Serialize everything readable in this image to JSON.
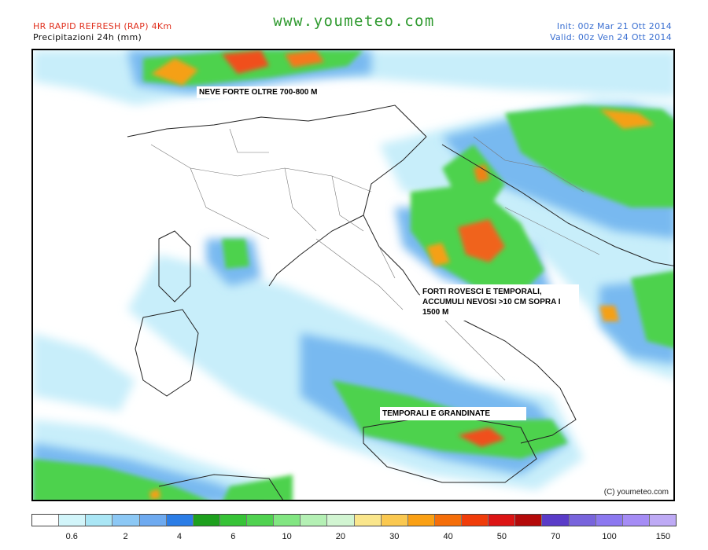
{
  "header": {
    "model": "HR RAPID REFRESH (RAP) 4Km",
    "product": "Precipitazioni 24h (mm)",
    "site": "www.youmeteo.com",
    "init": "Init: 00z Mar  21 Ott 2014",
    "valid": "Valid: 00z Ven  24 Ott 2014"
  },
  "annotations": {
    "snow": "NEVE FORTE OLTRE 700-800 M",
    "storms_line1": "FORTI ROVESCI E TEMPORALI,",
    "storms_line2": "ACCUMULI NEVOSI >10 CM SOPRA I",
    "storms_line3": "1500 M",
    "hail": "TEMPORALI E GRANDINATE"
  },
  "copyright": "(C)  youmeteo.com",
  "legend": {
    "colors": [
      "#ffffff",
      "#d2f5fa",
      "#aae6f5",
      "#8cc8f5",
      "#6eaaf0",
      "#2c7de6",
      "#1ea01e",
      "#37c337",
      "#50d250",
      "#82e682",
      "#b4f0b4",
      "#d2f5d2",
      "#fae68c",
      "#fac850",
      "#faa014",
      "#f56e0a",
      "#f03c0a",
      "#dc1414",
      "#b40a0a",
      "#5a3cc8",
      "#7864dc",
      "#8c78f0",
      "#a58cf5",
      "#beaaf5"
    ],
    "labels": [
      {
        "text": "0.6",
        "boundary": 2
      },
      {
        "text": "2",
        "boundary": 4
      },
      {
        "text": "4",
        "boundary": 6
      },
      {
        "text": "6",
        "boundary": 8
      },
      {
        "text": "10",
        "boundary": 10
      },
      {
        "text": "20",
        "boundary": 12
      },
      {
        "text": "30",
        "boundary": 14
      },
      {
        "text": "40",
        "boundary": 16
      },
      {
        "text": "50",
        "boundary": 18
      },
      {
        "text": "70",
        "boundary": 20
      },
      {
        "text": "100",
        "boundary": 22
      },
      {
        "text": "150",
        "boundary": 24
      }
    ]
  }
}
